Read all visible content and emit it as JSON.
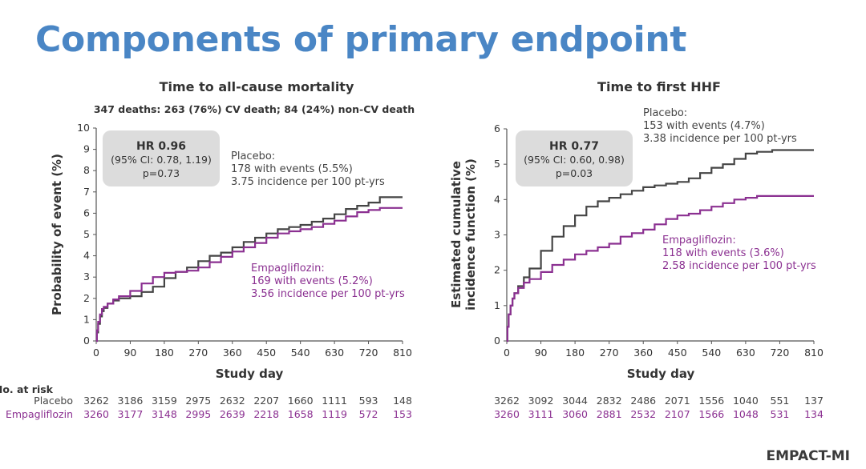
{
  "page": {
    "title": "Components of primary endpoint",
    "brand": "EMPACT-MI",
    "risk_header": "No. at risk"
  },
  "colors": {
    "placebo": "#454545",
    "empagliflozin": "#8b3091",
    "title": "#4a86c5"
  },
  "chart_data": [
    {
      "type": "line",
      "title": "Time to all-cause mortality",
      "subtitle": "347 deaths: 263 (76%) CV death; 84 (24%) non-CV death",
      "xlabel": "Study day",
      "ylabel": "Probability of event (%)",
      "xlim": [
        0,
        810
      ],
      "ylim": [
        0,
        10
      ],
      "xticks": [
        0,
        90,
        180,
        270,
        360,
        450,
        540,
        630,
        720,
        810
      ],
      "yticks": [
        0,
        1,
        2,
        3,
        4,
        5,
        6,
        7,
        8,
        9,
        10
      ],
      "hr": {
        "main": "HR 0.96",
        "ci": "(95% CI: 0.78, 1.19)",
        "p": "p=0.73"
      },
      "series": [
        {
          "name": "Placebo",
          "color": "#454545",
          "annotation": [
            "Placebo:",
            "178 with events (5.5%)",
            "3.75 incidence per 100 pt-yrs"
          ],
          "points": [
            [
              0,
              0
            ],
            [
              2,
              0.4
            ],
            [
              5,
              0.8
            ],
            [
              10,
              1.15
            ],
            [
              15,
              1.4
            ],
            [
              20,
              1.55
            ],
            [
              30,
              1.75
            ],
            [
              45,
              1.9
            ],
            [
              60,
              2.0
            ],
            [
              90,
              2.1
            ],
            [
              120,
              2.3
            ],
            [
              150,
              2.55
            ],
            [
              180,
              2.95
            ],
            [
              210,
              3.25
            ],
            [
              240,
              3.45
            ],
            [
              270,
              3.75
            ],
            [
              300,
              4.0
            ],
            [
              330,
              4.15
            ],
            [
              360,
              4.4
            ],
            [
              390,
              4.65
            ],
            [
              420,
              4.85
            ],
            [
              450,
              5.05
            ],
            [
              480,
              5.25
            ],
            [
              510,
              5.35
            ],
            [
              540,
              5.45
            ],
            [
              570,
              5.6
            ],
            [
              600,
              5.75
            ],
            [
              630,
              5.95
            ],
            [
              660,
              6.2
            ],
            [
              690,
              6.35
            ],
            [
              720,
              6.5
            ],
            [
              750,
              6.75
            ],
            [
              810,
              6.75
            ]
          ]
        },
        {
          "name": "Empagliflozin",
          "color": "#8b3091",
          "annotation": [
            "Empagliflozin:",
            "169 with events (5.2%)",
            "3.56 incidence per 100 pt-yrs"
          ],
          "points": [
            [
              0,
              0
            ],
            [
              2,
              0.5
            ],
            [
              5,
              0.9
            ],
            [
              10,
              1.25
            ],
            [
              15,
              1.5
            ],
            [
              20,
              1.6
            ],
            [
              30,
              1.75
            ],
            [
              45,
              1.95
            ],
            [
              60,
              2.1
            ],
            [
              90,
              2.35
            ],
            [
              120,
              2.7
            ],
            [
              150,
              3.0
            ],
            [
              180,
              3.2
            ],
            [
              210,
              3.25
            ],
            [
              240,
              3.3
            ],
            [
              270,
              3.45
            ],
            [
              300,
              3.7
            ],
            [
              330,
              3.95
            ],
            [
              360,
              4.2
            ],
            [
              390,
              4.4
            ],
            [
              420,
              4.6
            ],
            [
              450,
              4.85
            ],
            [
              480,
              5.05
            ],
            [
              510,
              5.15
            ],
            [
              540,
              5.25
            ],
            [
              570,
              5.35
            ],
            [
              600,
              5.5
            ],
            [
              630,
              5.65
            ],
            [
              660,
              5.85
            ],
            [
              690,
              6.05
            ],
            [
              720,
              6.15
            ],
            [
              750,
              6.25
            ],
            [
              810,
              6.25
            ]
          ]
        }
      ],
      "at_risk": {
        "rows": [
          {
            "label": "Placebo",
            "values": [
              "3262",
              "3186",
              "3159",
              "2975",
              "2632",
              "2207",
              "1660",
              "1111",
              "593",
              "148"
            ]
          },
          {
            "label": "Empagliflozin",
            "values": [
              "3260",
              "3177",
              "3148",
              "2995",
              "2639",
              "2218",
              "1658",
              "1119",
              "572",
              "153"
            ]
          }
        ]
      }
    },
    {
      "type": "line",
      "title": "Time to first HHF",
      "xlabel": "Study day",
      "ylabel": "Estimated cumulative incidence function (%)",
      "xlim": [
        0,
        810
      ],
      "ylim": [
        0,
        6
      ],
      "xticks": [
        0,
        90,
        180,
        270,
        360,
        450,
        540,
        630,
        720,
        810
      ],
      "yticks": [
        0,
        1,
        2,
        3,
        4,
        5,
        6
      ],
      "hr": {
        "main": "HR 0.77",
        "ci": "(95% CI: 0.60, 0.98)",
        "p": "p=0.03"
      },
      "series": [
        {
          "name": "Placebo",
          "color": "#454545",
          "annotation": [
            "Placebo:",
            "153 with events (4.7%)",
            "3.38 incidence per 100 pt-yrs"
          ],
          "points": [
            [
              0,
              0
            ],
            [
              2,
              0.4
            ],
            [
              5,
              0.75
            ],
            [
              10,
              1.0
            ],
            [
              15,
              1.2
            ],
            [
              20,
              1.35
            ],
            [
              30,
              1.55
            ],
            [
              45,
              1.8
            ],
            [
              60,
              2.05
            ],
            [
              90,
              2.55
            ],
            [
              120,
              2.95
            ],
            [
              150,
              3.25
            ],
            [
              180,
              3.55
            ],
            [
              210,
              3.8
            ],
            [
              240,
              3.95
            ],
            [
              270,
              4.05
            ],
            [
              300,
              4.15
            ],
            [
              330,
              4.25
            ],
            [
              360,
              4.35
            ],
            [
              390,
              4.4
            ],
            [
              420,
              4.45
            ],
            [
              450,
              4.5
            ],
            [
              480,
              4.6
            ],
            [
              510,
              4.75
            ],
            [
              540,
              4.9
            ],
            [
              570,
              5.0
            ],
            [
              600,
              5.15
            ],
            [
              630,
              5.3
            ],
            [
              660,
              5.35
            ],
            [
              700,
              5.4
            ],
            [
              810,
              5.4
            ]
          ]
        },
        {
          "name": "Empagliflozin",
          "color": "#8b3091",
          "annotation": [
            "Empagliflozin:",
            "118 with events (3.6%)",
            "2.58 incidence per 100 pt-yrs"
          ],
          "points": [
            [
              0,
              0
            ],
            [
              2,
              0.4
            ],
            [
              5,
              0.75
            ],
            [
              10,
              1.0
            ],
            [
              15,
              1.2
            ],
            [
              20,
              1.35
            ],
            [
              30,
              1.5
            ],
            [
              45,
              1.65
            ],
            [
              60,
              1.75
            ],
            [
              90,
              1.95
            ],
            [
              120,
              2.15
            ],
            [
              150,
              2.3
            ],
            [
              180,
              2.45
            ],
            [
              210,
              2.55
            ],
            [
              240,
              2.65
            ],
            [
              270,
              2.75
            ],
            [
              300,
              2.95
            ],
            [
              330,
              3.05
            ],
            [
              360,
              3.15
            ],
            [
              390,
              3.3
            ],
            [
              420,
              3.45
            ],
            [
              450,
              3.55
            ],
            [
              480,
              3.6
            ],
            [
              510,
              3.7
            ],
            [
              540,
              3.8
            ],
            [
              570,
              3.9
            ],
            [
              600,
              4.0
            ],
            [
              630,
              4.05
            ],
            [
              660,
              4.1
            ],
            [
              810,
              4.1
            ]
          ]
        }
      ],
      "at_risk": {
        "rows": [
          {
            "label": "Placebo",
            "values": [
              "3262",
              "3092",
              "3044",
              "2832",
              "2486",
              "2071",
              "1556",
              "1040",
              "551",
              "137"
            ]
          },
          {
            "label": "Empagliflozin",
            "values": [
              "3260",
              "3111",
              "3060",
              "2881",
              "2532",
              "2107",
              "1566",
              "1048",
              "531",
              "134"
            ]
          }
        ]
      }
    }
  ]
}
